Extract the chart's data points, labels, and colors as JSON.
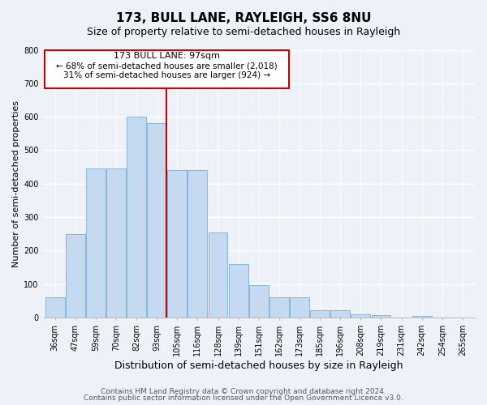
{
  "title": "173, BULL LANE, RAYLEIGH, SS6 8NU",
  "subtitle": "Size of property relative to semi-detached houses in Rayleigh",
  "xlabel": "Distribution of semi-detached houses by size in Rayleigh",
  "ylabel": "Number of semi-detached properties",
  "bar_labels": [
    "36sqm",
    "47sqm",
    "59sqm",
    "70sqm",
    "82sqm",
    "93sqm",
    "105sqm",
    "116sqm",
    "128sqm",
    "139sqm",
    "151sqm",
    "162sqm",
    "173sqm",
    "185sqm",
    "196sqm",
    "208sqm",
    "219sqm",
    "231sqm",
    "242sqm",
    "254sqm",
    "265sqm"
  ],
  "bar_values": [
    60,
    250,
    445,
    445,
    600,
    580,
    440,
    440,
    255,
    160,
    97,
    60,
    60,
    22,
    22,
    10,
    8,
    0,
    5,
    0,
    0
  ],
  "bar_color": "#c5d9f0",
  "bar_edge_color": "#7bafd4",
  "red_line_color": "#cc0000",
  "box_edge_color": "#cc0000",
  "annotation_text_line1": "173 BULL LANE: 97sqm",
  "annotation_text_line2": "← 68% of semi-detached houses are smaller (2,018)",
  "annotation_text_line3": "31% of semi-detached houses are larger (924) →",
  "footer_line1": "Contains HM Land Registry data © Crown copyright and database right 2024.",
  "footer_line2": "Contains public sector information licensed under the Open Government Licence v3.0.",
  "ylim": [
    0,
    800
  ],
  "yticks": [
    0,
    100,
    200,
    300,
    400,
    500,
    600,
    700,
    800
  ],
  "bg_color": "#eef2f8",
  "title_fontsize": 11,
  "subtitle_fontsize": 9,
  "ylabel_fontsize": 8,
  "xlabel_fontsize": 9,
  "tick_fontsize": 7,
  "footer_fontsize": 6.5,
  "prop_line_bar_index": 5
}
